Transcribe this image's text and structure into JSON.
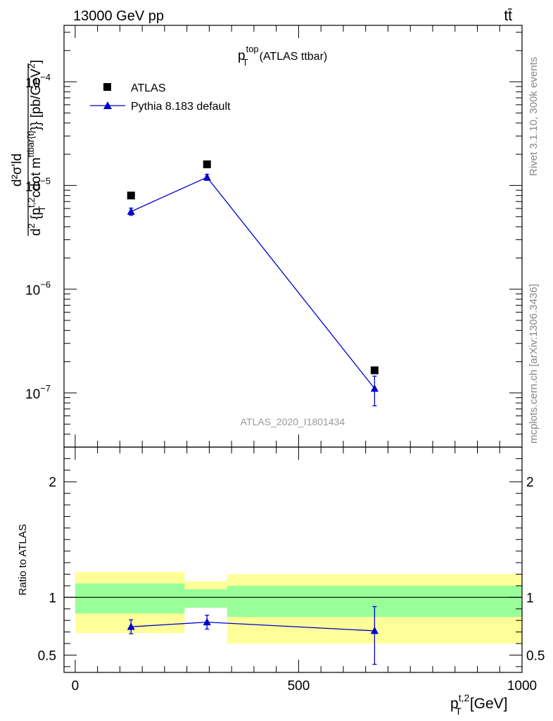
{
  "header": {
    "left_label": "13000 GeV pp",
    "right_label": "tt̄"
  },
  "side_labels": {
    "rivet": "Rivet 3.1.10,  300k events",
    "mcplots": "mcplots.cern.ch [arXiv:1306.3436]"
  },
  "chart_data": [
    {
      "type": "scatter",
      "panel": "main",
      "title_main": "p",
      "title_sup": "top",
      "title_sub": "T",
      "title_suffix": "(ATLAS ttbar)",
      "analysis_id": "ATLAS_2020_I1801434",
      "yscale": "log",
      "xlim": [
        -25,
        1000
      ],
      "ylim": [
        3e-08,
        0.00035
      ],
      "ylabel": {
        "frac_num": "d²σ'ld",
        "frac_den_a": "d",
        "frac_den_sup_a": "2",
        "frac_den_b": " {p",
        "frac_den_sup_b": "t,2",
        "frac_den_sub_b": "T",
        "frac_den_c": "cdot m",
        "frac_den_sup_c": "ttbar{t}",
        "frac_den_d": "}} [pb/GeV",
        "frac_den_sup_d": "2",
        "frac_den_e": "]"
      },
      "y_ticks": [
        {
          "value": 1e-07,
          "base": "10",
          "exp": "−7"
        },
        {
          "value": 1e-06,
          "base": "10",
          "exp": "−6"
        },
        {
          "value": 1e-05,
          "base": "10",
          "exp": "−5"
        },
        {
          "value": 0.0001,
          "base": "10",
          "exp": "−4"
        }
      ],
      "legend": [
        {
          "name": "ATLAS",
          "marker": "square",
          "color": "#000000"
        },
        {
          "name": "Pythia 8.183 default",
          "marker": "triangle",
          "color": "#0000cc"
        }
      ],
      "series": [
        {
          "name": "ATLAS",
          "color": "#000000",
          "x": [
            125,
            295,
            670
          ],
          "y": [
            8e-06,
            1.6e-05,
            1.65e-07
          ],
          "xerr_low": [
            125,
            40,
            330
          ],
          "xerr_high": [
            125,
            45,
            330
          ]
        },
        {
          "name": "Pythia 8.183 default",
          "color": "#0000cc",
          "x": [
            125,
            295,
            670
          ],
          "y": [
            5.6e-06,
            1.2e-05,
            1.1e-07
          ],
          "yerr_low": [
            4.5e-07,
            8e-07,
            3.5e-08
          ],
          "yerr_high": [
            4.5e-07,
            8e-07,
            3.5e-08
          ]
        }
      ]
    },
    {
      "type": "scatter",
      "panel": "ratio",
      "ylabel": "Ratio to ATLAS",
      "xlabel_main": "p",
      "xlabel_sup": "t,2",
      "xlabel_sub": "T",
      "xlabel_unit": "[GeV]",
      "xlim": [
        -25,
        1000
      ],
      "ylim": [
        0.35,
        2.3
      ],
      "x_ticks": [
        {
          "value": 0,
          "label": "0"
        },
        {
          "value": 500,
          "label": "500"
        },
        {
          "value": 1000,
          "label": "1000"
        }
      ],
      "y_ticks": [
        {
          "value": 0.5,
          "label": "0.5"
        },
        {
          "value": 1,
          "label": "1"
        },
        {
          "value": 2,
          "label": "2"
        }
      ],
      "bands": [
        {
          "x_low": 0,
          "x_high": 245,
          "yellow": [
            0.69,
            1.22
          ],
          "green": [
            0.86,
            1.12
          ]
        },
        {
          "x_low": 245,
          "x_high": 340,
          "yellow": [
            0.91,
            1.14
          ],
          "green": [
            0.91,
            1.07
          ]
        },
        {
          "x_low": 340,
          "x_high": 1000,
          "yellow": [
            0.6,
            1.2
          ],
          "green": [
            0.83,
            1.1
          ]
        }
      ],
      "reference_line": 1,
      "series": [
        {
          "name": "Pythia 8.183 default",
          "color": "#0000cc",
          "x": [
            125,
            295,
            670
          ],
          "y": [
            0.745,
            0.785,
            0.71
          ],
          "yerr_low": [
            0.06,
            0.06,
            0.29
          ],
          "yerr_high": [
            0.06,
            0.06,
            0.21
          ]
        }
      ]
    }
  ]
}
